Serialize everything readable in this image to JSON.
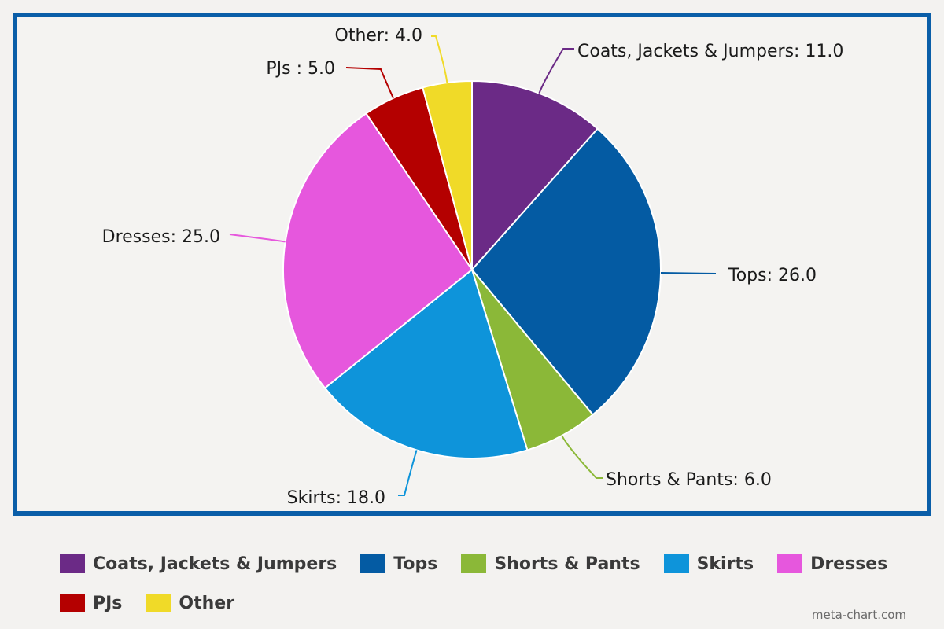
{
  "chart_data": {
    "type": "pie",
    "title": "",
    "slices": [
      {
        "label": "Coats, Jackets & Jumpers",
        "value": 11.0,
        "display": "Coats, Jackets & Jumpers: 11.0",
        "color": "#6b2a86"
      },
      {
        "label": "Tops",
        "value": 26.0,
        "display": "Tops: 26.0",
        "color": "#045ba3"
      },
      {
        "label": "Shorts & Pants",
        "value": 6.0,
        "display": "Shorts & Pants: 6.0",
        "color": "#8bb838"
      },
      {
        "label": "Skirts",
        "value": 18.0,
        "display": "Skirts: 18.0",
        "color": "#0e94da"
      },
      {
        "label": "Dresses",
        "value": 25.0,
        "display": "Dresses: 25.0",
        "color": "#e657dd"
      },
      {
        "label": "PJs",
        "value": 5.0,
        "display": "PJs : 5.0",
        "color": "#b40000"
      },
      {
        "label": "Other",
        "value": 4.0,
        "display": "Other: 4.0",
        "color": "#f0da28"
      }
    ],
    "legend_position": "bottom",
    "frame_color": "#0a5ea8"
  },
  "legend": {
    "items": [
      {
        "label": "Coats, Jackets & Jumpers",
        "color": "#6b2a86"
      },
      {
        "label": "Tops",
        "color": "#045ba3"
      },
      {
        "label": "Shorts & Pants",
        "color": "#8bb838"
      },
      {
        "label": "Skirts",
        "color": "#0e94da"
      },
      {
        "label": "Dresses",
        "color": "#e657dd"
      },
      {
        "label": "PJs",
        "color": "#b40000"
      },
      {
        "label": "Other",
        "color": "#f0da28"
      }
    ]
  },
  "credit": "meta-chart.com"
}
